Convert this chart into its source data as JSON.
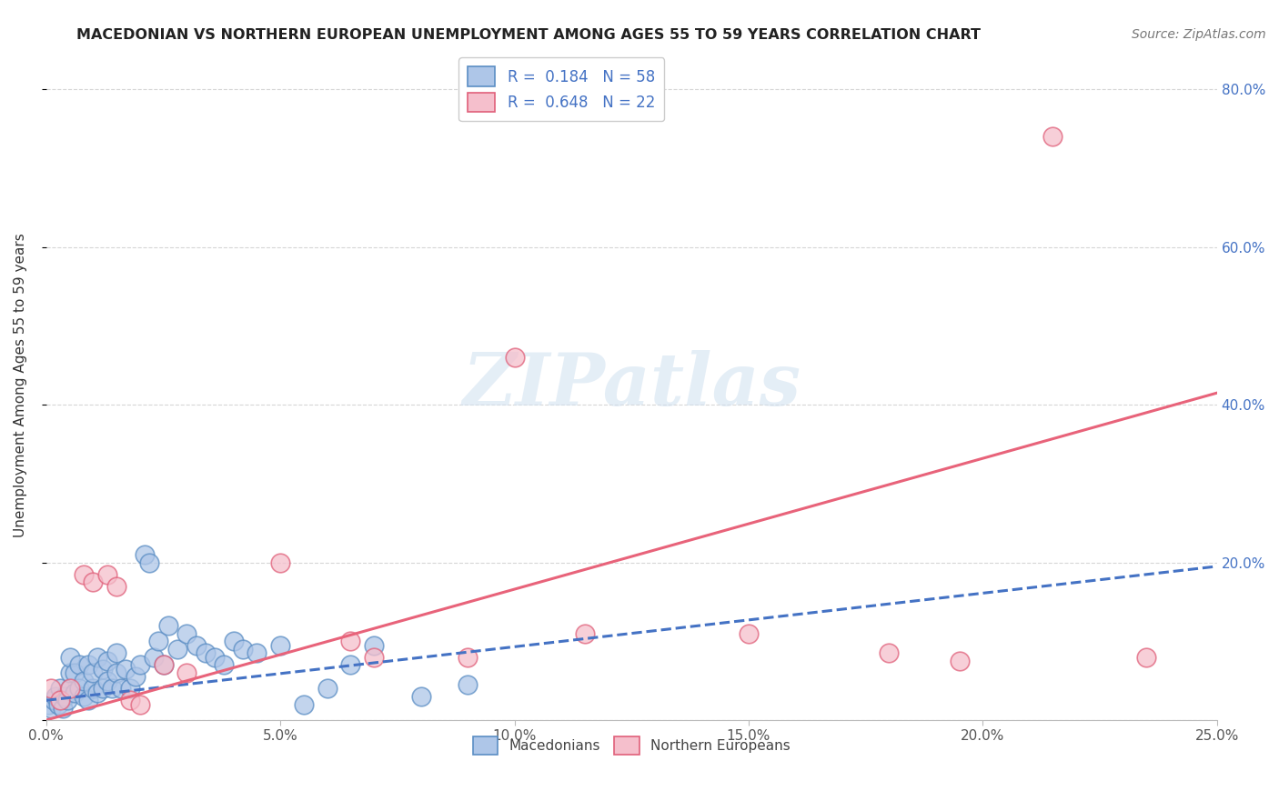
{
  "title": "MACEDONIAN VS NORTHERN EUROPEAN UNEMPLOYMENT AMONG AGES 55 TO 59 YEARS CORRELATION CHART",
  "source": "Source: ZipAtlas.com",
  "ylabel": "Unemployment Among Ages 55 to 59 years",
  "xlim": [
    0,
    0.25
  ],
  "ylim": [
    0,
    0.85
  ],
  "xticks": [
    0.0,
    0.05,
    0.1,
    0.15,
    0.2,
    0.25
  ],
  "xticklabels": [
    "0.0%",
    "5.0%",
    "10.0%",
    "15.0%",
    "20.0%",
    "25.0%"
  ],
  "yticks_right": [
    0.0,
    0.2,
    0.4,
    0.6,
    0.8
  ],
  "yticklabels_right": [
    "",
    "20.0%",
    "40.0%",
    "60.0%",
    "80.0%"
  ],
  "macedonian_color": "#aec6e8",
  "northern_european_color": "#f5bfcc",
  "macedonian_edge_color": "#5b8ec4",
  "northern_european_edge_color": "#e0607a",
  "macedonian_line_color": "#4472c4",
  "northern_european_line_color": "#e8637a",
  "R_macedonian": 0.184,
  "N_macedonian": 58,
  "R_northern": 0.648,
  "N_northern": 22,
  "background_color": "#ffffff",
  "grid_color": "#cccccc",
  "mac_trend_x": [
    0.0,
    0.25
  ],
  "mac_trend_y": [
    0.025,
    0.195
  ],
  "nor_trend_x": [
    0.0,
    0.25
  ],
  "nor_trend_y": [
    0.0,
    0.415
  ],
  "mac_x": [
    0.0005,
    0.001,
    0.0015,
    0.002,
    0.0025,
    0.003,
    0.0035,
    0.004,
    0.0045,
    0.005,
    0.005,
    0.005,
    0.006,
    0.006,
    0.007,
    0.007,
    0.008,
    0.008,
    0.009,
    0.009,
    0.01,
    0.01,
    0.011,
    0.011,
    0.012,
    0.012,
    0.013,
    0.013,
    0.014,
    0.015,
    0.015,
    0.016,
    0.017,
    0.018,
    0.019,
    0.02,
    0.021,
    0.022,
    0.023,
    0.024,
    0.025,
    0.026,
    0.028,
    0.03,
    0.032,
    0.034,
    0.036,
    0.038,
    0.04,
    0.042,
    0.045,
    0.05,
    0.055,
    0.06,
    0.065,
    0.07,
    0.08,
    0.09
  ],
  "mac_y": [
    0.02,
    0.015,
    0.025,
    0.03,
    0.02,
    0.04,
    0.015,
    0.03,
    0.025,
    0.04,
    0.06,
    0.08,
    0.035,
    0.06,
    0.04,
    0.07,
    0.03,
    0.05,
    0.025,
    0.07,
    0.04,
    0.06,
    0.035,
    0.08,
    0.04,
    0.065,
    0.05,
    0.075,
    0.04,
    0.06,
    0.085,
    0.04,
    0.065,
    0.04,
    0.055,
    0.07,
    0.21,
    0.2,
    0.08,
    0.1,
    0.07,
    0.12,
    0.09,
    0.11,
    0.095,
    0.085,
    0.08,
    0.07,
    0.1,
    0.09,
    0.085,
    0.095,
    0.02,
    0.04,
    0.07,
    0.095,
    0.03,
    0.045
  ],
  "nor_x": [
    0.001,
    0.003,
    0.005,
    0.008,
    0.01,
    0.013,
    0.015,
    0.018,
    0.02,
    0.025,
    0.03,
    0.05,
    0.065,
    0.07,
    0.09,
    0.1,
    0.115,
    0.15,
    0.18,
    0.195,
    0.215,
    0.235
  ],
  "nor_y": [
    0.04,
    0.025,
    0.04,
    0.185,
    0.175,
    0.185,
    0.17,
    0.025,
    0.02,
    0.07,
    0.06,
    0.2,
    0.1,
    0.08,
    0.08,
    0.46,
    0.11,
    0.11,
    0.085,
    0.075,
    0.74,
    0.08
  ]
}
